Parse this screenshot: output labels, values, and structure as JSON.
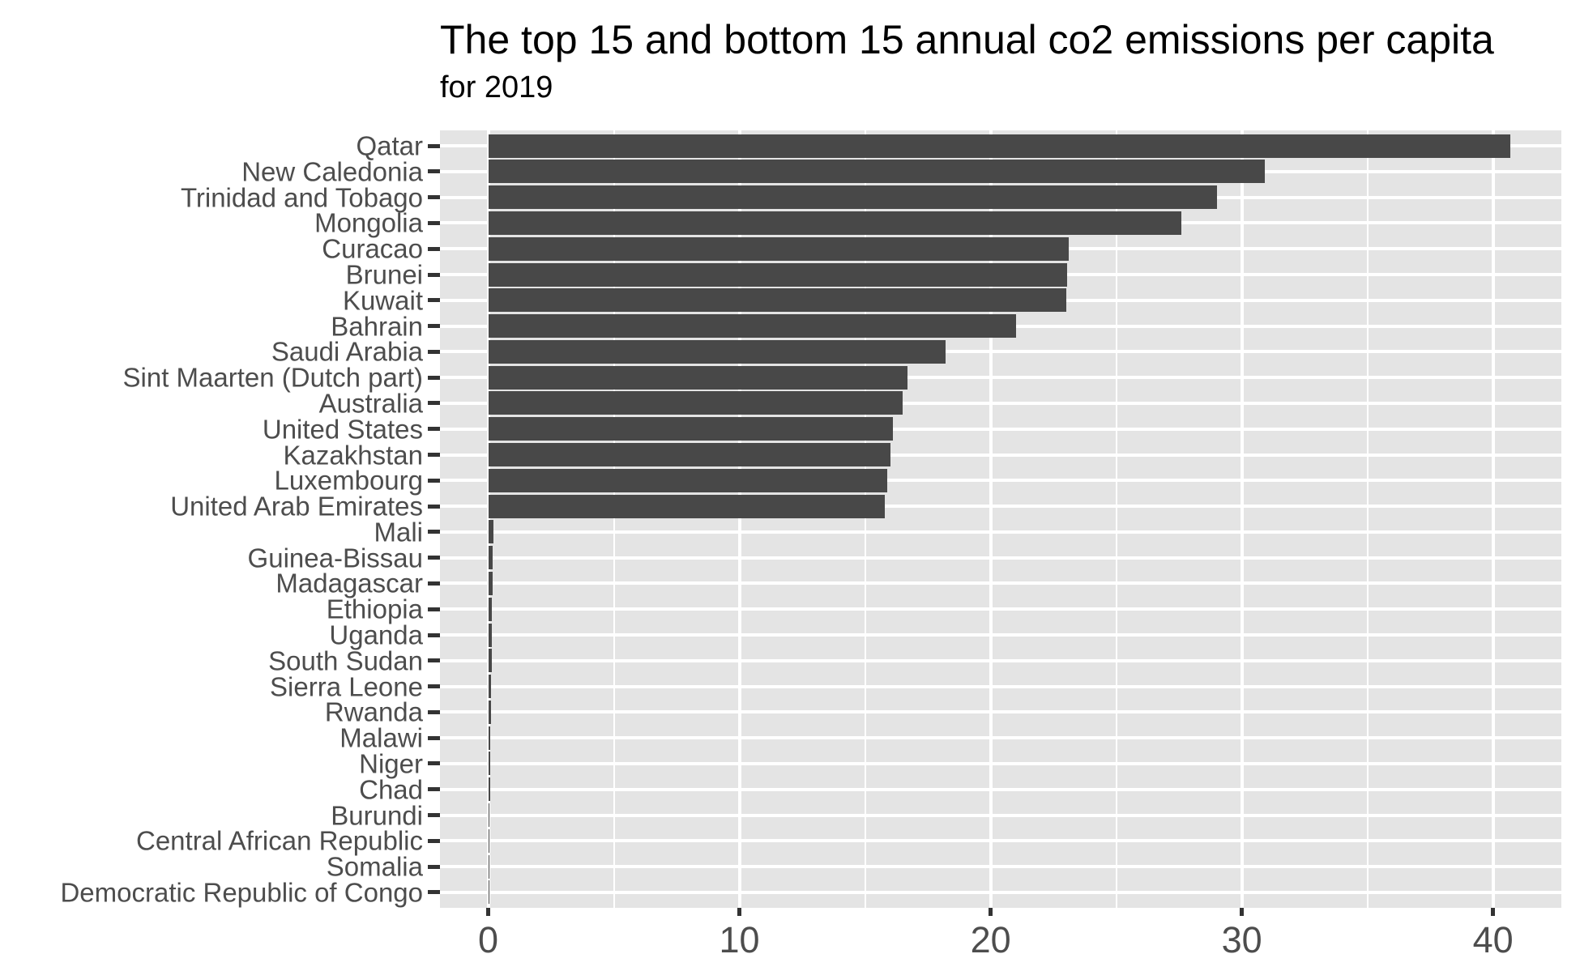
{
  "header": {
    "title": "The top 15 and bottom 15 annual co2 emissions per capita",
    "subtitle": "for 2019"
  },
  "chart_data": {
    "type": "bar",
    "orientation": "horizontal",
    "title": "The top 15 and bottom 15 annual co2 emissions per capita",
    "subtitle": "for 2019",
    "categories": [
      "Qatar",
      "New Caledonia",
      "Trinidad and Tobago",
      "Mongolia",
      "Curacao",
      "Brunei",
      "Kuwait",
      "Bahrain",
      "Saudi Arabia",
      "Sint Maarten (Dutch part)",
      "Australia",
      "United States",
      "Kazakhstan",
      "Luxembourg",
      "United Arab Emirates",
      "Mali",
      "Guinea-Bissau",
      "Madagascar",
      "Ethiopia",
      "Uganda",
      "South Sudan",
      "Sierra Leone",
      "Rwanda",
      "Malawi",
      "Niger",
      "Chad",
      "Burundi",
      "Central African Republic",
      "Somalia",
      "Democratic Republic of Congo"
    ],
    "values": [
      40.7,
      30.9,
      29.0,
      27.6,
      23.1,
      23.05,
      23.0,
      21.0,
      18.2,
      16.7,
      16.5,
      16.1,
      16.0,
      15.9,
      15.8,
      0.22,
      0.18,
      0.17,
      0.15,
      0.14,
      0.13,
      0.11,
      0.1,
      0.09,
      0.08,
      0.07,
      0.06,
      0.05,
      0.04,
      0.03
    ],
    "xlabel": "",
    "ylabel": "",
    "x_major_ticks": [
      0,
      10,
      20,
      30,
      40
    ],
    "x_minor_ticks": [
      5,
      15,
      25,
      35
    ],
    "xlim": [
      -1.92,
      42.72
    ],
    "grid": true,
    "legend_position": "none",
    "bar_color": "#484848",
    "panel_color": "#E4E4E4",
    "gridline_color": "#FFFFFF",
    "axis_text_color": "#4D4D4D",
    "tick_mark_color": "#333333",
    "title_color": "#000000"
  }
}
